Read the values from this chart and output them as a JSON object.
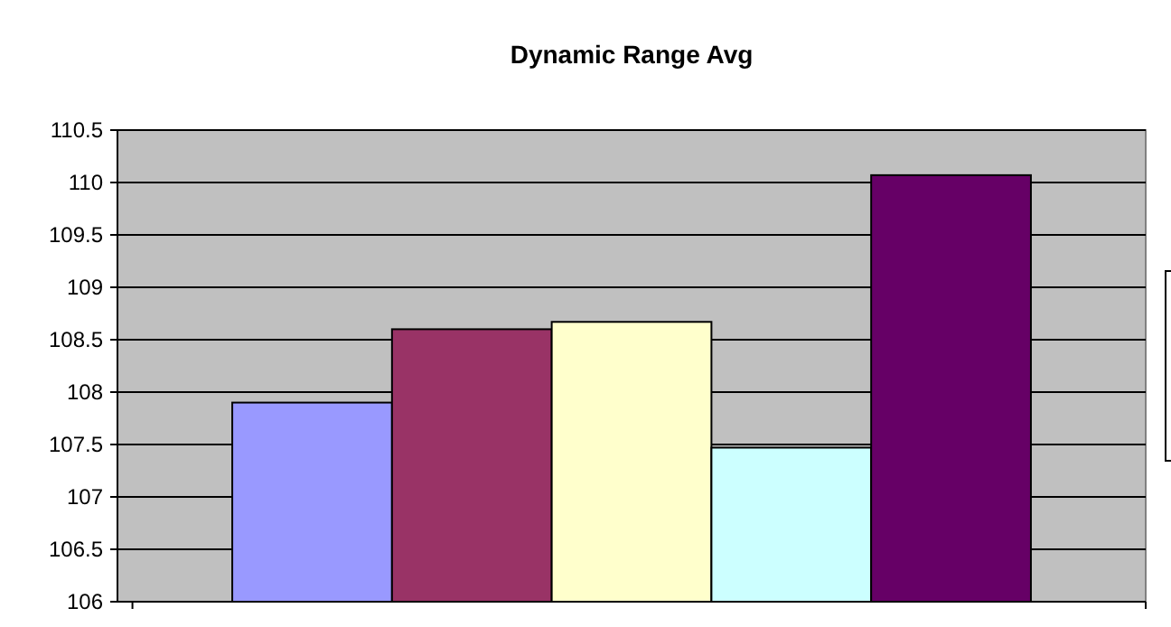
{
  "chart_data": {
    "type": "bar",
    "title": "Dynamic Range Avg",
    "categories": [
      null
    ],
    "series": [
      {
        "color": "#9999ff",
        "values": [
          107.9
        ]
      },
      {
        "color": "#993366",
        "values": [
          108.6
        ]
      },
      {
        "color": "#ffffcc",
        "values": [
          108.67
        ]
      },
      {
        "color": "#ccffff",
        "values": [
          107.47
        ]
      },
      {
        "color": "#660066",
        "values": [
          110.07
        ]
      }
    ],
    "ylim": [
      106,
      110.5
    ],
    "yticks": [
      106,
      106.5,
      107,
      107.5,
      108,
      108.5,
      109,
      109.5,
      110,
      110.5
    ],
    "grid": "y"
  }
}
